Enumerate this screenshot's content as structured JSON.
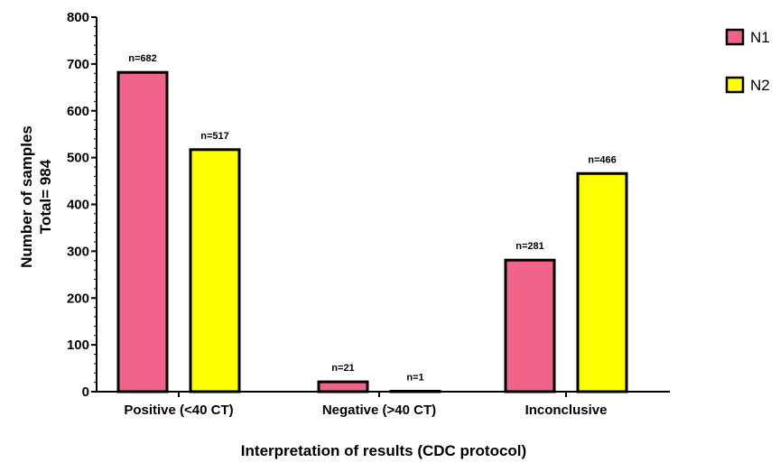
{
  "chart_data": {
    "type": "bar",
    "categories": [
      "Positive (<40 CT)",
      "Negative (>40 CT)",
      "Inconclusive"
    ],
    "series": [
      {
        "name": "N1",
        "color": "#f0648c",
        "values": [
          682,
          21,
          281
        ],
        "labels": [
          "n=682",
          "n=21",
          "n=281"
        ]
      },
      {
        "name": "N2",
        "color": "#ffff00",
        "values": [
          517,
          1,
          466
        ],
        "labels": [
          "n=517",
          "n=1",
          "n=466"
        ]
      }
    ],
    "title": "",
    "xlabel": "Interpretation of results (CDC protocol)",
    "ylabel_lines": [
      "Number of samples",
      "Total= 984"
    ],
    "ylim": [
      0,
      800
    ],
    "yticks": [
      0,
      100,
      200,
      300,
      400,
      500,
      600,
      700,
      800
    ],
    "grid": false,
    "legend_position": "top-right"
  }
}
